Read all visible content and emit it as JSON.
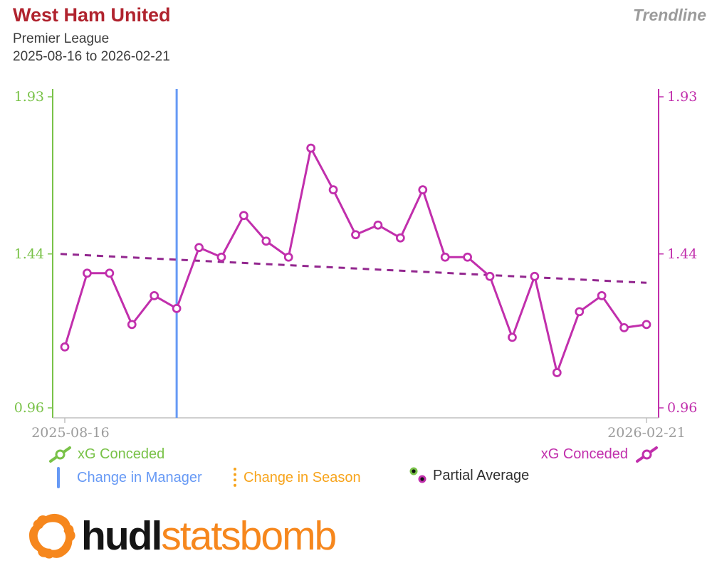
{
  "header": {
    "title": "West Ham United",
    "subtitle": "Premier League",
    "date_range": "2025-08-16 to 2026-02-21",
    "view_label": "Trendline"
  },
  "colors": {
    "title_red": "#B0232E",
    "green": "#79C248",
    "magenta": "#C12FAC",
    "trend_dash": "#93278F",
    "blue": "#6699F5",
    "orange": "#F7A41C",
    "gray_text": "#9C9C9C",
    "axis_gray": "#C0C0C0",
    "dark_text": "#2F2F2F",
    "logo_orange": "#F6871D",
    "logo_black": "#151515"
  },
  "chart_data": {
    "type": "line",
    "title": "West Ham United xG Conceded Trendline",
    "x_axis": {
      "start_label": "2025-08-16",
      "end_label": "2026-02-21"
    },
    "y_axis_left": {
      "name": "xG Conceded",
      "min": 0.96,
      "max": 1.93,
      "ticks": [
        1.93,
        1.44,
        0.96
      ]
    },
    "y_axis_right": {
      "name": "xG Conceded",
      "min": 0.96,
      "max": 1.93,
      "ticks": [
        1.93,
        1.44,
        0.96
      ]
    },
    "series": [
      {
        "name": "xG Conceded",
        "values": [
          1.15,
          1.38,
          1.38,
          1.22,
          1.31,
          1.27,
          1.46,
          1.43,
          1.56,
          1.48,
          1.43,
          1.77,
          1.64,
          1.5,
          1.53,
          1.49,
          1.64,
          1.43,
          1.43,
          1.37,
          1.18,
          1.37,
          1.07,
          1.26,
          1.31,
          1.21,
          1.22
        ]
      }
    ],
    "trendline": {
      "start": 1.44,
      "end": 1.35
    },
    "change_in_manager_after_match": 6,
    "grid": false,
    "legend_position": "bottom"
  },
  "legend": {
    "xg_conceded_left": "xG Conceded",
    "xg_conceded_right": "xG Conceded",
    "change_in_manager": "Change in Manager",
    "change_in_season": "Change in Season",
    "partial_average": "Partial Average"
  },
  "logo": {
    "hudl": "hudl",
    "statsbomb": "statsbomb"
  }
}
